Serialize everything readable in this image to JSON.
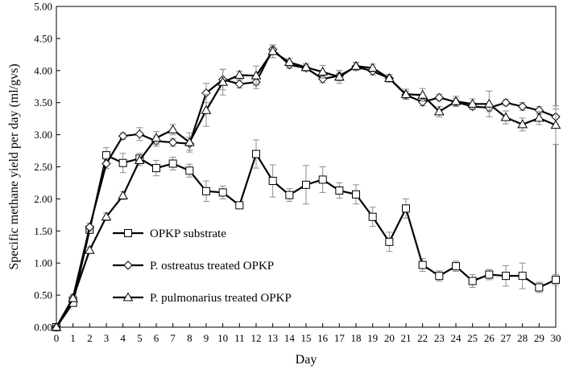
{
  "chart_data": {
    "type": "line",
    "title": "",
    "xlabel": "Day",
    "ylabel": "Specific methane yield per day (ml/gvs)",
    "xlim": [
      0,
      30
    ],
    "ylim": [
      0,
      5
    ],
    "x_ticks": [
      "0",
      "1",
      "2",
      "3",
      "4",
      "5",
      "6",
      "7",
      "8",
      "9",
      "10",
      "11",
      "12",
      "13",
      "14",
      "15",
      "16",
      "17",
      "18",
      "19",
      "20",
      "21",
      "22",
      "23",
      "24",
      "25",
      "26",
      "27",
      "28",
      "29",
      "30"
    ],
    "y_ticks": [
      "0.00",
      "0.50",
      "1.00",
      "1.50",
      "2.00",
      "2.50",
      "3.00",
      "3.50",
      "4.00",
      "4.50",
      "5.00"
    ],
    "grid": false,
    "legend_position": "center-left",
    "x": [
      0,
      1,
      2,
      3,
      4,
      5,
      6,
      7,
      8,
      9,
      10,
      11,
      12,
      13,
      14,
      15,
      16,
      17,
      18,
      19,
      20,
      21,
      22,
      23,
      24,
      25,
      26,
      27,
      28,
      29,
      30
    ],
    "series": [
      {
        "name": "OPKP substrate",
        "marker": "square",
        "values": [
          0.0,
          0.38,
          1.52,
          2.68,
          2.56,
          2.63,
          2.48,
          2.55,
          2.44,
          2.12,
          2.1,
          1.9,
          2.7,
          2.28,
          2.06,
          2.22,
          2.3,
          2.13,
          2.07,
          1.72,
          1.33,
          1.85,
          0.97,
          0.8,
          0.95,
          0.72,
          0.82,
          0.8,
          0.8,
          0.62,
          0.74
        ],
        "errors": [
          0.0,
          0.05,
          0.06,
          0.12,
          0.15,
          0.08,
          0.12,
          0.1,
          0.1,
          0.16,
          0.1,
          0.05,
          0.22,
          0.25,
          0.1,
          0.3,
          0.2,
          0.12,
          0.15,
          0.15,
          0.15,
          0.15,
          0.1,
          0.08,
          0.08,
          0.1,
          0.08,
          0.16,
          0.2,
          0.08,
          0.08
        ]
      },
      {
        "name": "P. ostreatus treated OPKP",
        "marker": "diamond",
        "values": [
          0.0,
          0.46,
          1.56,
          2.55,
          2.98,
          3.01,
          2.9,
          2.88,
          2.86,
          3.65,
          3.86,
          3.79,
          3.82,
          4.33,
          4.09,
          4.04,
          3.87,
          3.92,
          4.06,
          3.99,
          3.88,
          3.62,
          3.51,
          3.58,
          3.51,
          3.44,
          3.42,
          3.5,
          3.44,
          3.38,
          3.28
        ],
        "errors": [
          0.0,
          0.05,
          0.06,
          0.08,
          0.05,
          0.1,
          0.08,
          0.06,
          0.1,
          0.15,
          0.16,
          0.06,
          0.1,
          0.07,
          0.05,
          0.05,
          0.06,
          0.08,
          0.06,
          0.06,
          0.06,
          0.06,
          0.06,
          0.05,
          0.06,
          0.05,
          0.06,
          0.05,
          0.06,
          0.06,
          0.12
        ]
      },
      {
        "name": "P. pulmonarius treated OPKP",
        "marker": "triangle",
        "values": [
          0.0,
          0.45,
          1.2,
          1.72,
          2.05,
          2.6,
          2.95,
          3.08,
          2.88,
          3.38,
          3.82,
          3.93,
          3.92,
          4.3,
          4.13,
          4.05,
          3.98,
          3.9,
          4.07,
          4.04,
          3.88,
          3.63,
          3.62,
          3.36,
          3.52,
          3.48,
          3.48,
          3.27,
          3.16,
          3.26,
          3.15
        ],
        "errors": [
          0.0,
          0.04,
          0.05,
          0.06,
          0.06,
          0.08,
          0.1,
          0.08,
          0.15,
          0.25,
          0.2,
          0.06,
          0.15,
          0.1,
          0.06,
          0.06,
          0.1,
          0.1,
          0.06,
          0.06,
          0.06,
          0.08,
          0.1,
          0.08,
          0.08,
          0.08,
          0.2,
          0.1,
          0.1,
          0.1,
          0.3
        ]
      }
    ]
  }
}
